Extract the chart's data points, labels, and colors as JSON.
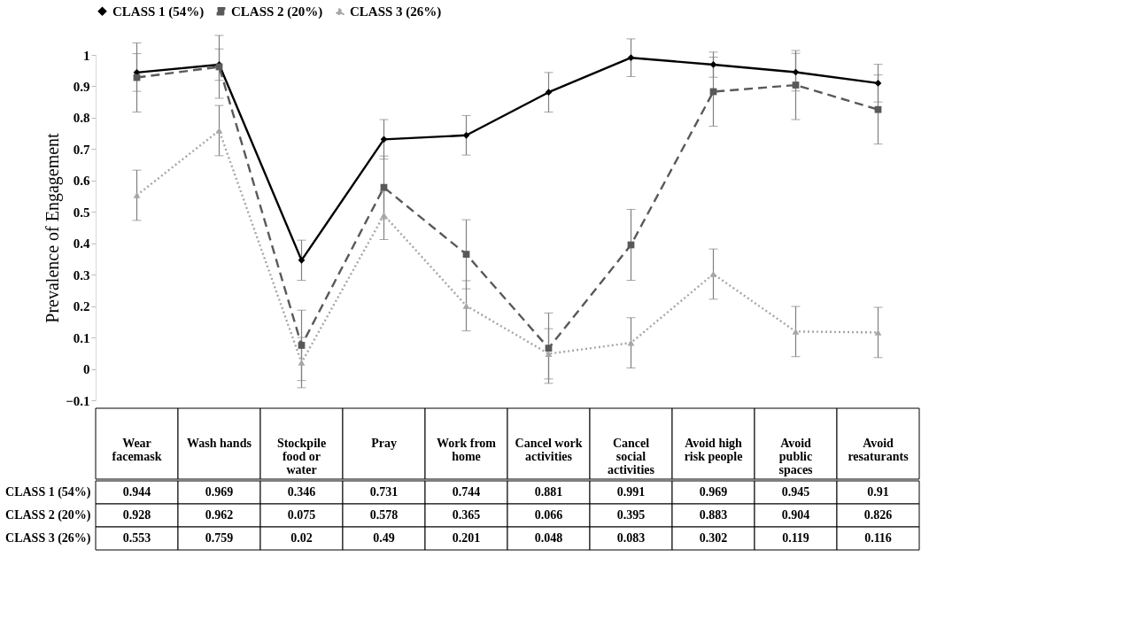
{
  "chart_data": {
    "type": "line",
    "ylabel": "Prevalence of Engagement",
    "categories": [
      "Wear facemask",
      "Wash hands",
      "Stockpile food or water",
      "Pray",
      "Work from home",
      "Cancel work activities",
      "Cancel social activities",
      "Avoid high risk people",
      "Avoid public spaces",
      "Avoid resaturants"
    ],
    "series": [
      {
        "name": "CLASS 1 (54%)",
        "color": "#000000",
        "marker": "diamond",
        "line_style": "solid",
        "values": [
          0.944,
          0.969,
          0.346,
          0.731,
          0.744,
          0.881,
          0.991,
          0.969,
          0.945,
          0.91
        ],
        "errors": [
          0.06,
          0.05,
          0.064,
          0.063,
          0.063,
          0.063,
          0.06,
          0.04,
          0.06,
          0.06
        ]
      },
      {
        "name": "CLASS 2 (20%)",
        "color": "#595959",
        "marker": "square",
        "line_style": "dashed",
        "values": [
          0.928,
          0.962,
          0.075,
          0.578,
          0.365,
          0.066,
          0.395,
          0.883,
          0.904,
          0.826
        ],
        "errors": [
          0.11,
          0.1,
          0.112,
          0.1,
          0.11,
          0.112,
          0.113,
          0.11,
          0.11,
          0.11
        ]
      },
      {
        "name": "CLASS 3 (26%)",
        "color": "#a6a6a6",
        "marker": "triangle",
        "line_style": "dotted",
        "values": [
          0.553,
          0.759,
          0.02,
          0.49,
          0.201,
          0.048,
          0.083,
          0.302,
          0.119,
          0.116
        ],
        "errors": [
          0.08,
          0.08,
          0.08,
          0.078,
          0.08,
          0.08,
          0.08,
          0.08,
          0.08,
          0.08
        ]
      }
    ],
    "ylim": [
      -0.1,
      1
    ],
    "yticks": [
      -0.1,
      0,
      0.1,
      0.2,
      0.3,
      0.4,
      0.5,
      0.6,
      0.7,
      0.8,
      0.9,
      1
    ],
    "grid": false,
    "legend": "top",
    "data_labels": true
  }
}
